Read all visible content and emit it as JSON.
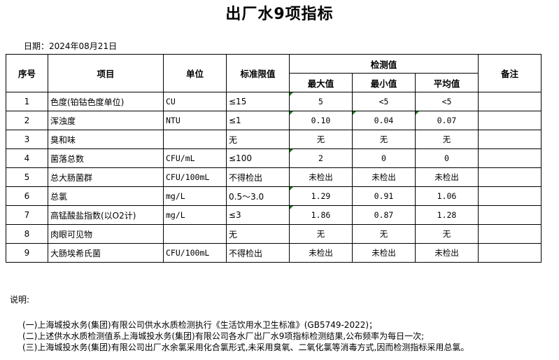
{
  "title": "出厂水9项指标",
  "date": "日期：2024年08月21日",
  "headers": {
    "no": "序号",
    "item": "项目",
    "unit": "单位",
    "limit": "标准限值",
    "measured": "检测值",
    "max": "最大值",
    "min": "最小值",
    "avg": "平均值",
    "remark": "备注"
  },
  "rows": [
    {
      "no": "1",
      "item": "色度(铂钴色度单位)",
      "unit": "CU",
      "limit": "≤15",
      "max": "5",
      "min": "<5",
      "avg": "<5",
      "remark": ""
    },
    {
      "no": "2",
      "item": "浑浊度",
      "unit": "NTU",
      "limit": "≤1",
      "max": "0.10",
      "min": "0.04",
      "avg": "0.07",
      "remark": ""
    },
    {
      "no": "3",
      "item": "臭和味",
      "unit": "",
      "limit": "无",
      "max": "无",
      "min": "无",
      "avg": "无",
      "remark": ""
    },
    {
      "no": "4",
      "item": "菌落总数",
      "unit": "CFU/mL",
      "limit": "≤100",
      "max": "2",
      "min": "0",
      "avg": "0",
      "remark": ""
    },
    {
      "no": "5",
      "item": "总大肠菌群",
      "unit": "CFU/100mL",
      "limit": "不得检出",
      "max": "未检出",
      "min": "未检出",
      "avg": "未检出",
      "remark": ""
    },
    {
      "no": "6",
      "item": "总氯",
      "unit": "mg/L",
      "limit": "0.5～3.0",
      "max": "1.29",
      "min": "0.91",
      "avg": "1.06",
      "remark": ""
    },
    {
      "no": "7",
      "item": "高锰酸盐指数(以O2计)",
      "unit": "mg/L",
      "limit": "≤3",
      "max": "1.86",
      "min": "0.87",
      "avg": "1.28",
      "remark": ""
    },
    {
      "no": "8",
      "item": "肉眼可见物",
      "unit": "",
      "limit": "无",
      "max": "无",
      "min": "无",
      "avg": "无",
      "remark": ""
    },
    {
      "no": "9",
      "item": "大肠埃希氏菌",
      "unit": "CFU/100mL",
      "limit": "不得检出",
      "max": "未检出",
      "min": "未检出",
      "avg": "未检出",
      "remark": ""
    }
  ],
  "notes": {
    "label": "说明:",
    "lines": [
      "(一)上海城投水务(集团)有限公司供水水质检测执行《生活饮用水卫生标准》(GB5749-2022)；",
      "(二)上述供水水质检测值系上海城投水务(集团)有限公司各水厂出厂水9项指标检测结果,公布频率为每日一次;",
      "(三)上海城投水务(集团)有限公司出厂水余氯采用化合氯形式,未采用臭氧、二氧化氯等消毒方式,因而检测指标采用总氯。"
    ]
  }
}
